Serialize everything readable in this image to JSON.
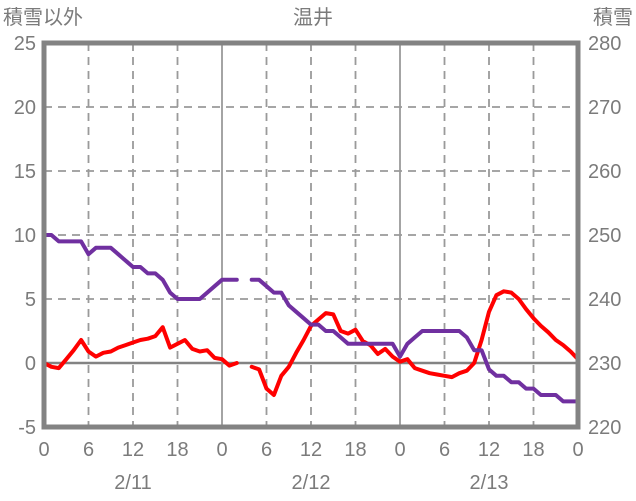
{
  "header": {
    "left_axis_title": "積雪以外",
    "title": "温井",
    "right_axis_title": "積雪"
  },
  "colors": {
    "temperature_line": "#FF0000",
    "snow_depth_line": "#7030A0",
    "axis_frame": "#838383",
    "gridline": "#9A9A9A",
    "label_text": "#7B7B7B",
    "background": "#FFFFFF"
  },
  "chart_data": {
    "type": "line",
    "title": "温井",
    "x": {
      "hours_span": 72,
      "hour_tick_step": 6,
      "hour_tick_labels": [
        "0",
        "6",
        "12",
        "18",
        "0",
        "6",
        "12",
        "18",
        "0",
        "6",
        "12",
        "18",
        "0"
      ],
      "date_labels": [
        "2/11",
        "2/12",
        "2/13"
      ]
    },
    "left_axis": {
      "title": "積雪以外",
      "min": -5,
      "max": 25,
      "tick_labels": [
        25,
        20,
        15,
        10,
        5,
        0,
        -5
      ]
    },
    "right_axis": {
      "title": "積雪",
      "min": 220,
      "max": 280,
      "tick_labels": [
        280,
        270,
        260,
        250,
        240,
        230,
        220
      ]
    },
    "grid": {
      "h_dashed_at": [
        20,
        15,
        10,
        5
      ],
      "h_solid_at": [
        0
      ],
      "v_solid_every_hours": 24,
      "v_dashed_every_hours": 6
    },
    "series": [
      {
        "name": "積雪以外",
        "axis": "left",
        "color": "#FF0000",
        "values": [
          0.0,
          -0.3,
          -0.4,
          0.3,
          1.0,
          1.8,
          0.9,
          0.5,
          0.8,
          0.9,
          1.2,
          1.4,
          1.6,
          1.8,
          1.9,
          2.1,
          2.8,
          1.2,
          1.5,
          1.8,
          1.1,
          0.9,
          1.0,
          0.4,
          0.3,
          -0.2,
          0.0,
          null,
          -0.3,
          -0.5,
          -2.0,
          -2.5,
          -1.0,
          -0.3,
          0.8,
          1.8,
          2.9,
          3.4,
          3.9,
          3.8,
          2.5,
          2.3,
          2.6,
          1.7,
          1.4,
          0.7,
          1.1,
          0.5,
          0.1,
          0.3,
          -0.4,
          -0.6,
          -0.8,
          -0.9,
          -1.0,
          -1.1,
          -0.8,
          -0.6,
          0.0,
          1.8,
          4.0,
          5.3,
          5.6,
          5.5,
          5.0,
          4.2,
          3.5,
          2.9,
          2.4,
          1.8,
          1.4,
          0.9,
          0.3
        ]
      },
      {
        "name": "積雪",
        "axis": "right",
        "color": "#7030A0",
        "values": [
          250,
          250,
          249,
          249,
          249,
          249,
          247,
          248,
          248,
          248,
          247,
          246,
          245,
          245,
          244,
          244,
          243,
          241,
          240,
          240,
          240,
          240,
          241,
          242,
          243,
          243,
          243,
          null,
          243,
          243,
          242,
          241,
          241,
          239,
          238,
          237,
          236,
          236,
          235,
          235,
          234,
          233,
          233,
          233,
          233,
          233,
          233,
          233,
          231,
          233,
          234,
          235,
          235,
          235,
          235,
          235,
          235,
          234,
          232,
          232,
          229,
          228,
          228,
          227,
          227,
          226,
          226,
          225,
          225,
          225,
          224,
          224,
          224
        ]
      }
    ]
  }
}
